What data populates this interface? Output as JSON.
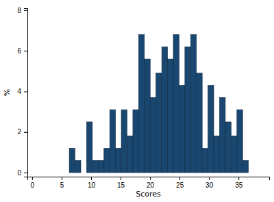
{
  "chart_data": {
    "type": "histogram",
    "x_label": "Scores",
    "y_label": "%",
    "bins": [
      6.3,
      7.28,
      8.26,
      9.24,
      10.22,
      11.2,
      12.18,
      13.16,
      14.14,
      15.12,
      16.1,
      17.08,
      18.06,
      19.04,
      20.02,
      21.0,
      21.98,
      22.96,
      23.94,
      24.92,
      25.9,
      26.88,
      27.86,
      28.84,
      29.82,
      30.8,
      31.78,
      32.76,
      33.74,
      34.72,
      35.7,
      36.68
    ],
    "values": [
      1.2,
      0.6,
      0,
      2.5,
      0.6,
      0.6,
      1.2,
      3.1,
      1.2,
      3.1,
      1.8,
      3.1,
      6.8,
      5.6,
      3.7,
      4.9,
      6.2,
      5.6,
      6.8,
      4.3,
      6.2,
      6.8,
      4.9,
      1.2,
      4.3,
      1.8,
      3.7,
      2.5,
      1.8,
      3.1,
      0.6
    ],
    "color": "#1a476f",
    "xlim": [
      -0.8,
      40.2
    ],
    "xticks": [
      0,
      5,
      10,
      15,
      20,
      25,
      30,
      35
    ],
    "ylim": [
      -0.2,
      8.1
    ],
    "yticks": [
      0,
      2,
      4,
      6,
      8
    ],
    "grid": false
  }
}
